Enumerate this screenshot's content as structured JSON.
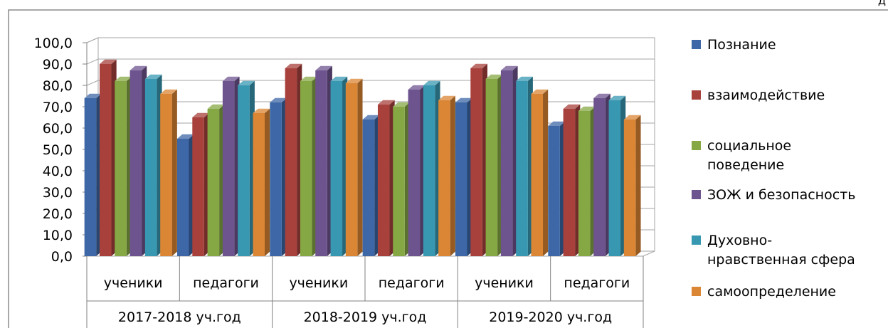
{
  "page": {
    "corner_text": "Д"
  },
  "chart_data": {
    "type": "bar",
    "style": "3d-clustered-column",
    "groups": [
      "2017-2018 уч.год",
      "2018-2019 уч.год",
      "2019-2020 уч.год"
    ],
    "categories": [
      "ученики",
      "педагоги",
      "ученики",
      "педагоги",
      "ученики",
      "педагоги"
    ],
    "ylim": [
      0,
      100
    ],
    "ytick_step": 10,
    "ytick_labels": [
      "0,0",
      "10,0",
      "20,0",
      "30,0",
      "40,0",
      "50,0",
      "60,0",
      "70,0",
      "80,0",
      "90,0",
      "100,0"
    ],
    "grid": true,
    "legend_position": "right",
    "series": [
      {
        "name": "Познание",
        "color": "#3D67A6",
        "values": [
          74,
          55,
          72,
          64,
          72,
          61
        ]
      },
      {
        "name": "взаимодействие",
        "color": "#A8403C",
        "values": [
          90,
          65,
          88,
          71,
          88,
          69
        ]
      },
      {
        "name": "социальное поведение",
        "legend_lines": [
          "социальное",
          "поведение"
        ],
        "color": "#86A844",
        "values": [
          82,
          69,
          82,
          70,
          83,
          68
        ]
      },
      {
        "name": "ЗОЖ и безопасность",
        "legend_lines": [
          "ЗОЖ и безопасность"
        ],
        "color": "#6E548F",
        "values": [
          87,
          82,
          87,
          78,
          87,
          74
        ]
      },
      {
        "name": "Духовно-нравственная сфера",
        "legend_lines": [
          "Духовно-",
          "нравственная сфера"
        ],
        "color": "#3898B2",
        "values": [
          83,
          80,
          82,
          80,
          82,
          73
        ]
      },
      {
        "name": "самоопределение",
        "color": "#DB8634",
        "values": [
          76,
          67,
          81,
          73,
          76,
          64
        ]
      }
    ]
  }
}
